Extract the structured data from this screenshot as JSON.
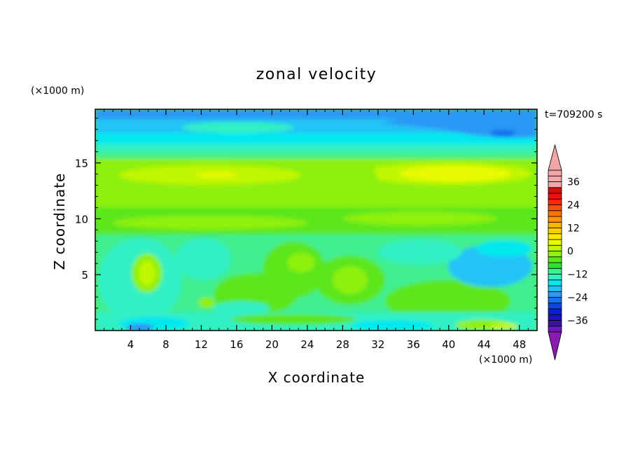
{
  "chart_data": {
    "type": "heatmap",
    "title": "zonal velocity",
    "xlabel": "X coordinate",
    "ylabel": "Z coordinate",
    "x_unit": "(×1000 m)",
    "y_unit": "(×1000 m)",
    "time_label": "t=709200 s",
    "xlim": [
      0,
      50
    ],
    "ylim": [
      0,
      19.8
    ],
    "x_ticks": [
      4,
      8,
      12,
      16,
      20,
      24,
      28,
      32,
      36,
      40,
      44,
      48
    ],
    "y_ticks": [
      5,
      10,
      15
    ],
    "colorbar": {
      "levels": [
        -42,
        -39,
        -36,
        -33,
        -30,
        -27,
        -24,
        -21,
        -18,
        -15,
        -12,
        -9,
        -6,
        -3,
        0,
        3,
        6,
        9,
        12,
        15,
        18,
        21,
        24,
        27,
        30,
        33,
        36,
        39,
        42
      ],
      "tick_values": [
        -36,
        -24,
        -12,
        0,
        12,
        24,
        36
      ],
      "tick_labels": [
        "−36",
        "−24",
        "−12",
        "0",
        "12",
        "24",
        "36"
      ],
      "min_color": "#8a1ab0",
      "max_color": "#f4a6a6",
      "colors": [
        "#8a1ab0",
        "#6a1ab8",
        "#3a10a0",
        "#1c10c8",
        "#0a20d8",
        "#0a48e8",
        "#1670f0",
        "#2a98f4",
        "#22c4f6",
        "#00e8f0",
        "#30f0c4",
        "#40ee90",
        "#30e030",
        "#5ce61e",
        "#8ef010",
        "#c0f600",
        "#e8fa00",
        "#ffea00",
        "#ffd000",
        "#ffb400",
        "#ff9600",
        "#ff7400",
        "#ff5000",
        "#ff2a00",
        "#f01010",
        "#d80a0a",
        "#f4a6a6"
      ]
    }
  }
}
